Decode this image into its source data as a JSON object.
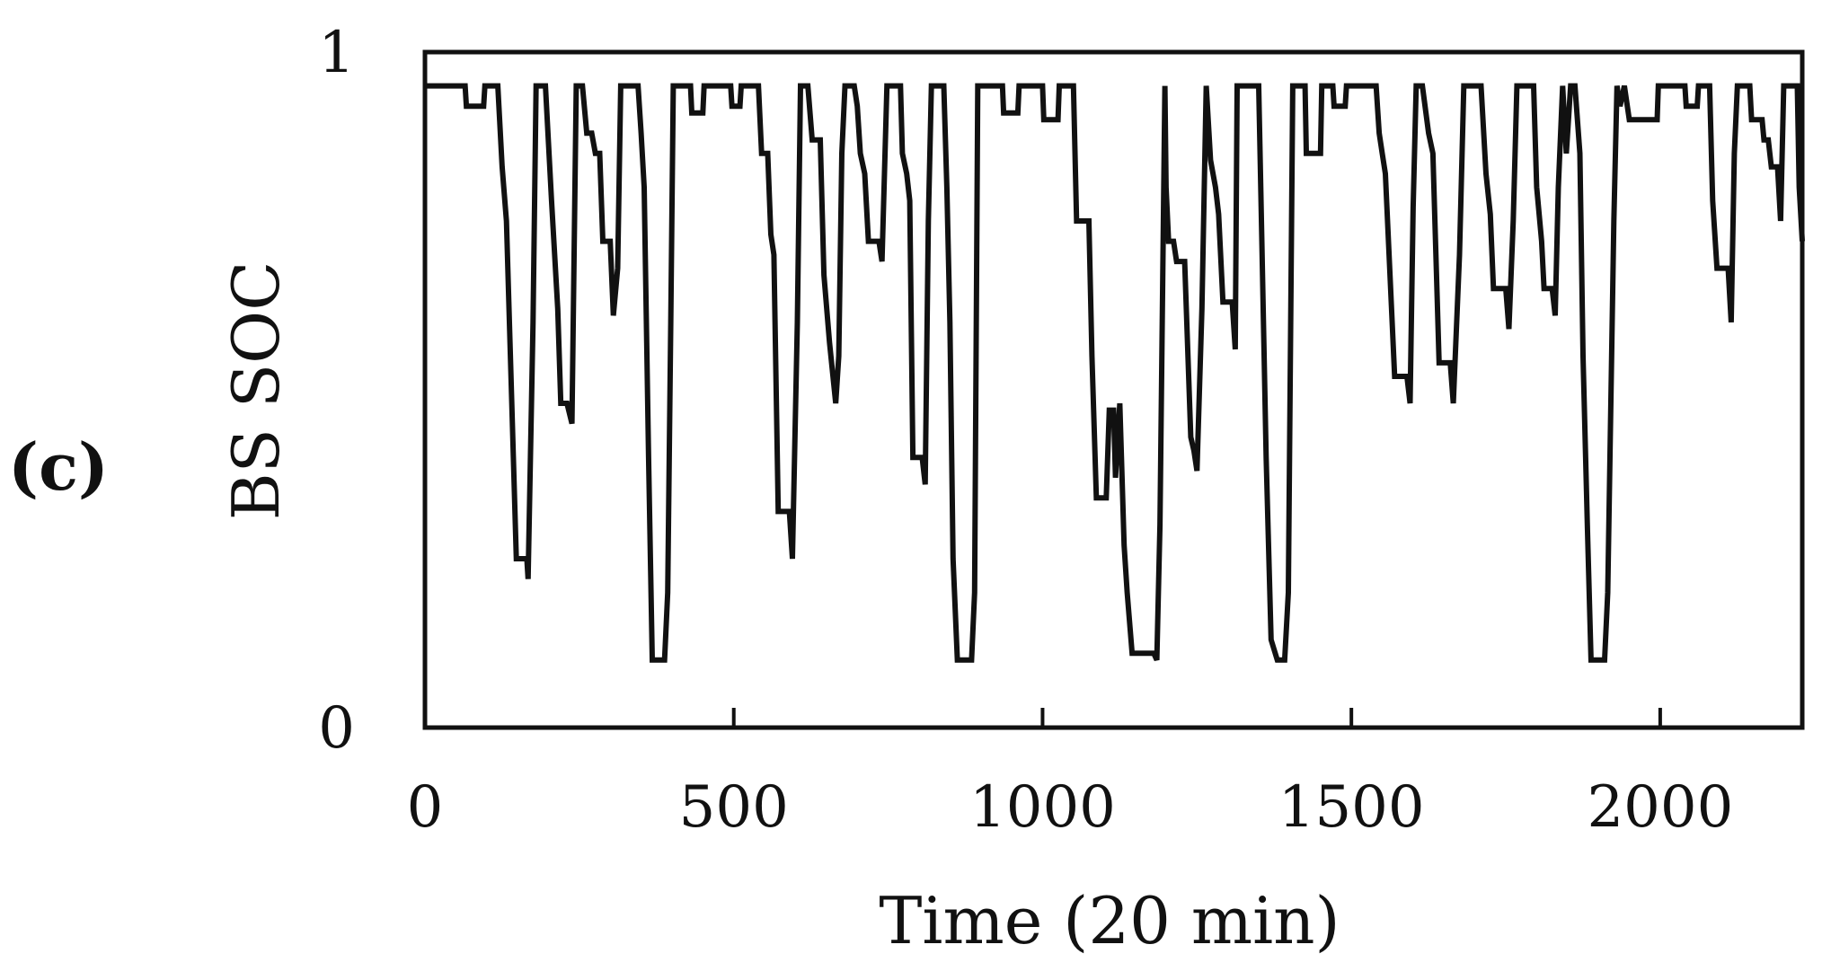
{
  "panel_label": "(c)",
  "chart_data": {
    "type": "line",
    "xlabel": "Time (20 min)",
    "ylabel": "BS SOC",
    "xlim": [
      0,
      2230
    ],
    "ylim": [
      0,
      1
    ],
    "x_ticks": [
      0,
      500,
      1000,
      1500,
      2000
    ],
    "x_tick_labels": [
      "0",
      "500",
      "1000",
      "1500",
      "2000"
    ],
    "y_ticks": [
      0,
      1
    ],
    "y_tick_labels": [
      "0",
      "1"
    ],
    "grid": false,
    "legend": "none",
    "line_color": "#111111",
    "series": [
      {
        "points": [
          [
            0,
            0.95
          ],
          [
            65,
            0.95
          ],
          [
            67,
            0.92
          ],
          [
            95,
            0.92
          ],
          [
            97,
            0.95
          ],
          [
            118,
            0.95
          ],
          [
            125,
            0.83
          ],
          [
            132,
            0.75
          ],
          [
            140,
            0.5
          ],
          [
            148,
            0.25
          ],
          [
            165,
            0.25
          ],
          [
            167,
            0.22
          ],
          [
            175,
            0.6
          ],
          [
            180,
            0.95
          ],
          [
            195,
            0.95
          ],
          [
            205,
            0.78
          ],
          [
            215,
            0.62
          ],
          [
            220,
            0.48
          ],
          [
            230,
            0.48
          ],
          [
            238,
            0.45
          ],
          [
            245,
            0.95
          ],
          [
            255,
            0.95
          ],
          [
            262,
            0.88
          ],
          [
            270,
            0.88
          ],
          [
            276,
            0.85
          ],
          [
            283,
            0.85
          ],
          [
            288,
            0.72
          ],
          [
            300,
            0.72
          ],
          [
            305,
            0.61
          ],
          [
            312,
            0.68
          ],
          [
            317,
            0.95
          ],
          [
            345,
            0.95
          ],
          [
            350,
            0.88
          ],
          [
            355,
            0.8
          ],
          [
            362,
            0.4
          ],
          [
            368,
            0.1
          ],
          [
            388,
            0.1
          ],
          [
            393,
            0.2
          ],
          [
            398,
            0.6
          ],
          [
            402,
            0.95
          ],
          [
            430,
            0.95
          ],
          [
            432,
            0.91
          ],
          [
            450,
            0.91
          ],
          [
            452,
            0.95
          ],
          [
            495,
            0.95
          ],
          [
            497,
            0.92
          ],
          [
            510,
            0.92
          ],
          [
            512,
            0.95
          ],
          [
            540,
            0.95
          ],
          [
            545,
            0.85
          ],
          [
            555,
            0.85
          ],
          [
            560,
            0.73
          ],
          [
            565,
            0.7
          ],
          [
            572,
            0.32
          ],
          [
            590,
            0.32
          ],
          [
            595,
            0.25
          ],
          [
            603,
            0.6
          ],
          [
            608,
            0.95
          ],
          [
            620,
            0.95
          ],
          [
            627,
            0.87
          ],
          [
            640,
            0.87
          ],
          [
            646,
            0.67
          ],
          [
            655,
            0.57
          ],
          [
            665,
            0.48
          ],
          [
            670,
            0.55
          ],
          [
            675,
            0.85
          ],
          [
            680,
            0.95
          ],
          [
            695,
            0.95
          ],
          [
            700,
            0.92
          ],
          [
            705,
            0.85
          ],
          [
            712,
            0.82
          ],
          [
            718,
            0.72
          ],
          [
            735,
            0.72
          ],
          [
            740,
            0.69
          ],
          [
            748,
            0.95
          ],
          [
            770,
            0.95
          ],
          [
            773,
            0.85
          ],
          [
            780,
            0.82
          ],
          [
            785,
            0.78
          ],
          [
            790,
            0.4
          ],
          [
            805,
            0.4
          ],
          [
            810,
            0.36
          ],
          [
            815,
            0.75
          ],
          [
            820,
            0.95
          ],
          [
            840,
            0.95
          ],
          [
            845,
            0.8
          ],
          [
            850,
            0.6
          ],
          [
            855,
            0.25
          ],
          [
            862,
            0.1
          ],
          [
            885,
            0.1
          ],
          [
            890,
            0.2
          ],
          [
            895,
            0.95
          ],
          [
            935,
            0.95
          ],
          [
            937,
            0.91
          ],
          [
            960,
            0.91
          ],
          [
            962,
            0.95
          ],
          [
            1000,
            0.95
          ],
          [
            1002,
            0.9
          ],
          [
            1025,
            0.9
          ],
          [
            1027,
            0.95
          ],
          [
            1050,
            0.95
          ],
          [
            1055,
            0.75
          ],
          [
            1075,
            0.75
          ],
          [
            1080,
            0.55
          ],
          [
            1087,
            0.34
          ],
          [
            1103,
            0.34
          ],
          [
            1108,
            0.47
          ],
          [
            1115,
            0.47
          ],
          [
            1118,
            0.37
          ],
          [
            1125,
            0.48
          ],
          [
            1132,
            0.27
          ],
          [
            1137,
            0.2
          ],
          [
            1145,
            0.11
          ],
          [
            1180,
            0.11
          ],
          [
            1185,
            0.1
          ],
          [
            1190,
            0.3
          ],
          [
            1198,
            0.95
          ],
          [
            1200,
            0.8
          ],
          [
            1204,
            0.72
          ],
          [
            1212,
            0.72
          ],
          [
            1217,
            0.69
          ],
          [
            1230,
            0.69
          ],
          [
            1235,
            0.56
          ],
          [
            1240,
            0.43
          ],
          [
            1245,
            0.41
          ],
          [
            1250,
            0.38
          ],
          [
            1258,
            0.62
          ],
          [
            1265,
            0.95
          ],
          [
            1272,
            0.84
          ],
          [
            1280,
            0.8
          ],
          [
            1285,
            0.76
          ],
          [
            1292,
            0.63
          ],
          [
            1307,
            0.63
          ],
          [
            1312,
            0.56
          ],
          [
            1315,
            0.95
          ],
          [
            1350,
            0.95
          ],
          [
            1355,
            0.72
          ],
          [
            1362,
            0.4
          ],
          [
            1370,
            0.13
          ],
          [
            1380,
            0.1
          ],
          [
            1392,
            0.1
          ],
          [
            1398,
            0.2
          ],
          [
            1405,
            0.95
          ],
          [
            1425,
            0.95
          ],
          [
            1427,
            0.85
          ],
          [
            1450,
            0.85
          ],
          [
            1452,
            0.95
          ],
          [
            1470,
            0.95
          ],
          [
            1472,
            0.92
          ],
          [
            1490,
            0.92
          ],
          [
            1492,
            0.95
          ],
          [
            1540,
            0.95
          ],
          [
            1545,
            0.88
          ],
          [
            1550,
            0.85
          ],
          [
            1555,
            0.82
          ],
          [
            1570,
            0.52
          ],
          [
            1590,
            0.52
          ],
          [
            1595,
            0.48
          ],
          [
            1600,
            0.77
          ],
          [
            1605,
            0.95
          ],
          [
            1615,
            0.95
          ],
          [
            1625,
            0.88
          ],
          [
            1632,
            0.85
          ],
          [
            1642,
            0.54
          ],
          [
            1660,
            0.54
          ],
          [
            1665,
            0.48
          ],
          [
            1675,
            0.7
          ],
          [
            1682,
            0.95
          ],
          [
            1710,
            0.95
          ],
          [
            1718,
            0.82
          ],
          [
            1725,
            0.76
          ],
          [
            1730,
            0.65
          ],
          [
            1750,
            0.65
          ],
          [
            1755,
            0.59
          ],
          [
            1762,
            0.75
          ],
          [
            1768,
            0.95
          ],
          [
            1795,
            0.95
          ],
          [
            1800,
            0.8
          ],
          [
            1808,
            0.72
          ],
          [
            1812,
            0.65
          ],
          [
            1825,
            0.65
          ],
          [
            1830,
            0.61
          ],
          [
            1835,
            0.8
          ],
          [
            1842,
            0.95
          ],
          [
            1848,
            0.85
          ],
          [
            1855,
            0.95
          ],
          [
            1862,
            0.95
          ],
          [
            1870,
            0.85
          ],
          [
            1875,
            0.55
          ],
          [
            1882,
            0.3
          ],
          [
            1888,
            0.1
          ],
          [
            1910,
            0.1
          ],
          [
            1915,
            0.2
          ],
          [
            1925,
            0.75
          ],
          [
            1930,
            0.95
          ],
          [
            1935,
            0.92
          ],
          [
            1942,
            0.95
          ],
          [
            1950,
            0.9
          ],
          [
            1995,
            0.9
          ],
          [
            1997,
            0.95
          ],
          [
            2040,
            0.95
          ],
          [
            2042,
            0.92
          ],
          [
            2060,
            0.92
          ],
          [
            2062,
            0.95
          ],
          [
            2080,
            0.95
          ],
          [
            2085,
            0.78
          ],
          [
            2092,
            0.68
          ],
          [
            2110,
            0.68
          ],
          [
            2115,
            0.6
          ],
          [
            2120,
            0.85
          ],
          [
            2125,
            0.95
          ],
          [
            2145,
            0.95
          ],
          [
            2148,
            0.9
          ],
          [
            2165,
            0.9
          ],
          [
            2168,
            0.87
          ],
          [
            2175,
            0.87
          ],
          [
            2180,
            0.83
          ],
          [
            2190,
            0.83
          ],
          [
            2195,
            0.75
          ],
          [
            2200,
            0.95
          ],
          [
            2222,
            0.95
          ],
          [
            2225,
            0.8
          ],
          [
            2230,
            0.72
          ]
        ]
      }
    ]
  }
}
